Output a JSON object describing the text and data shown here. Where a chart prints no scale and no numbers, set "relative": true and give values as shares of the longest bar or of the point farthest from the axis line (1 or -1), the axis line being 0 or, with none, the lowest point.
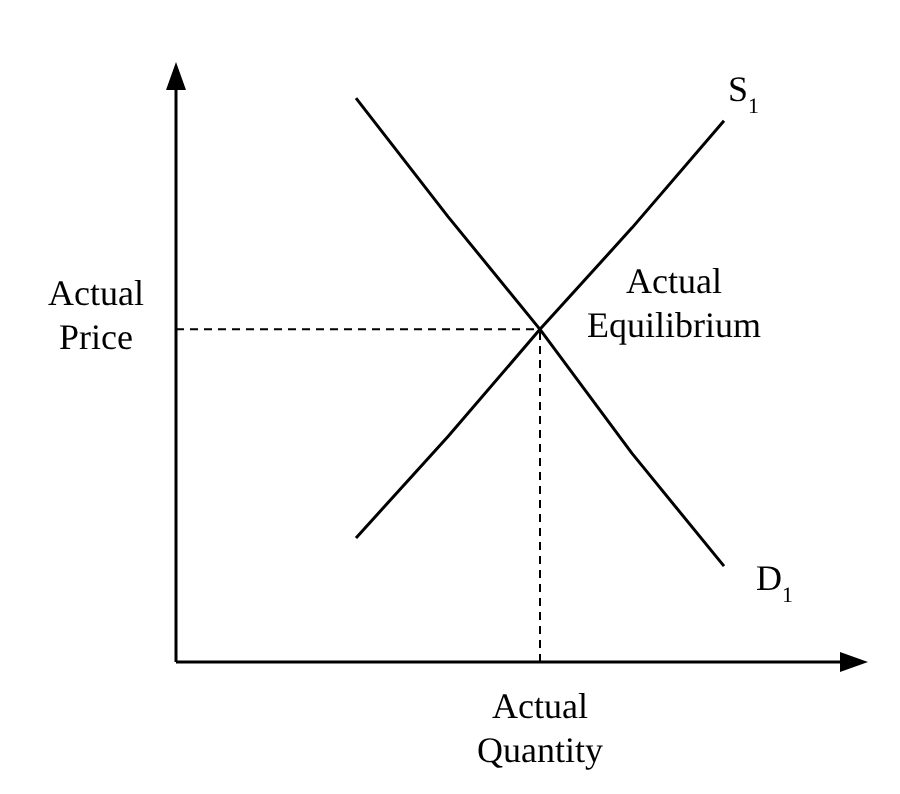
{
  "chart_data": {
    "type": "line",
    "relative": true,
    "marker": "none",
    "line_style": "solid",
    "categories": [
      null,
      null,
      null,
      null,
      null
    ],
    "series": [
      {
        "name": "S$_{1}$",
        "color": "#000000",
        "values": [
          0.22,
          0.4,
          0.59,
          0.77,
          0.96
        ]
      },
      {
        "name": "D$_{1}$",
        "color": "#000000",
        "values": [
          1.0,
          0.79,
          0.59,
          0.37,
          0.17
        ]
      }
    ],
    "ref_lines": [
      {
        "axis": "x",
        "label": "Actual Quantity",
        "color": "#000000",
        "line_style": "dashed"
      },
      {
        "axis": "y",
        "value": 0.59,
        "label": "Actual Price",
        "color": "#000000",
        "line_style": "dashed"
      }
    ],
    "annotations": [
      "Actual Equilibrium"
    ]
  }
}
